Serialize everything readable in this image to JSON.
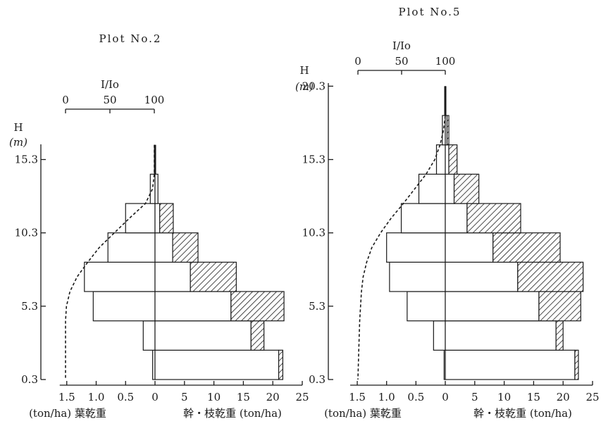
{
  "chart_data": [
    {
      "type": "bar",
      "title": "Plot No.2",
      "height_axis": {
        "label": "H",
        "unit": "(m)",
        "ticks": [
          "15.3",
          "10.3",
          "5.3",
          "0.3"
        ],
        "range": [
          0.3,
          16.3
        ]
      },
      "light_axis": {
        "label": "I/Io",
        "ticks": [
          "0",
          "50",
          "100"
        ],
        "range": [
          0,
          100
        ]
      },
      "leaf_axis": {
        "label": "(ton/ha) 葉乾重",
        "ticks": [
          "1.5",
          "1.0",
          "0.5",
          "0"
        ],
        "range": [
          0,
          1.5
        ]
      },
      "wood_axis": {
        "label": "幹・枝乾重 (ton/ha)",
        "ticks": [
          "0",
          "5",
          "10",
          "15",
          "20",
          "25"
        ],
        "range": [
          0,
          25
        ]
      },
      "layers": [
        {
          "h_bottom": 0.3,
          "h_top": 2.3,
          "leaf": 0.04,
          "stem": 21.0,
          "branch": 0.7
        },
        {
          "h_bottom": 2.3,
          "h_top": 4.3,
          "leaf": 0.2,
          "stem": 16.3,
          "branch": 2.2
        },
        {
          "h_bottom": 4.3,
          "h_top": 6.3,
          "leaf": 1.05,
          "stem": 12.9,
          "branch": 9.0
        },
        {
          "h_bottom": 6.3,
          "h_top": 8.3,
          "leaf": 1.2,
          "stem": 6.0,
          "branch": 7.8
        },
        {
          "h_bottom": 8.3,
          "h_top": 10.3,
          "leaf": 0.8,
          "stem": 3.0,
          "branch": 4.3
        },
        {
          "h_bottom": 10.3,
          "h_top": 12.3,
          "leaf": 0.5,
          "stem": 0.8,
          "branch": 2.3
        },
        {
          "h_bottom": 12.3,
          "h_top": 14.3,
          "leaf": 0.08,
          "stem": 0.5,
          "branch": 0.0
        }
      ],
      "light_profile": [
        {
          "h": 16.3,
          "i": 100
        },
        {
          "h": 14.3,
          "i": 100
        },
        {
          "h": 13.3,
          "i": 98
        },
        {
          "h": 12.3,
          "i": 90
        },
        {
          "h": 11.3,
          "i": 72
        },
        {
          "h": 10.3,
          "i": 55
        },
        {
          "h": 9.3,
          "i": 38
        },
        {
          "h": 8.3,
          "i": 25
        },
        {
          "h": 7.3,
          "i": 13
        },
        {
          "h": 6.3,
          "i": 5
        },
        {
          "h": 5.3,
          "i": 1
        },
        {
          "h": 4.3,
          "i": 0
        },
        {
          "h": 3.3,
          "i": 0
        },
        {
          "h": 0.3,
          "i": 0
        }
      ],
      "dead_top": {
        "h_from": 14.3,
        "h_to": 16.3
      }
    },
    {
      "type": "bar",
      "title": "Plot No.5",
      "height_axis": {
        "label": "H",
        "unit": "(m)",
        "ticks": [
          "20.3",
          "15.3",
          "10.3",
          "5.3",
          "0.3"
        ],
        "range": [
          0.3,
          20.3
        ]
      },
      "light_axis": {
        "label": "I/Io",
        "ticks": [
          "0",
          "50",
          "100"
        ],
        "range": [
          0,
          100
        ]
      },
      "leaf_axis": {
        "label": "(ton/ha) 葉乾重",
        "ticks": [
          "1.5",
          "1.0",
          "0.5",
          "0"
        ],
        "range": [
          0,
          1.5
        ]
      },
      "wood_axis": {
        "label": "幹・枝乾重 (ton/ha)",
        "ticks": [
          "0",
          "5",
          "10",
          "15",
          "20",
          "25"
        ],
        "range": [
          0,
          25
        ]
      },
      "layers": [
        {
          "h_bottom": 0.3,
          "h_top": 2.3,
          "leaf": 0.02,
          "stem": 22.0,
          "branch": 0.6
        },
        {
          "h_bottom": 2.3,
          "h_top": 4.3,
          "leaf": 0.2,
          "stem": 18.8,
          "branch": 1.2
        },
        {
          "h_bottom": 4.3,
          "h_top": 6.3,
          "leaf": 0.65,
          "stem": 15.9,
          "branch": 7.1
        },
        {
          "h_bottom": 6.3,
          "h_top": 8.3,
          "leaf": 0.95,
          "stem": 12.3,
          "branch": 11.1
        },
        {
          "h_bottom": 8.3,
          "h_top": 10.3,
          "leaf": 1.0,
          "stem": 8.1,
          "branch": 11.4
        },
        {
          "h_bottom": 10.3,
          "h_top": 12.3,
          "leaf": 0.75,
          "stem": 3.7,
          "branch": 9.1
        },
        {
          "h_bottom": 12.3,
          "h_top": 14.3,
          "leaf": 0.45,
          "stem": 1.5,
          "branch": 4.2
        },
        {
          "h_bottom": 14.3,
          "h_top": 16.3,
          "leaf": 0.15,
          "stem": 0.6,
          "branch": 1.4
        },
        {
          "h_bottom": 16.3,
          "h_top": 18.3,
          "leaf": 0.05,
          "stem": 0.3,
          "branch": 0.3
        }
      ],
      "light_profile": [
        {
          "h": 20.3,
          "i": 100
        },
        {
          "h": 18.3,
          "i": 100
        },
        {
          "h": 17.3,
          "i": 98
        },
        {
          "h": 16.3,
          "i": 94
        },
        {
          "h": 15.3,
          "i": 88
        },
        {
          "h": 14.3,
          "i": 78
        },
        {
          "h": 13.3,
          "i": 65
        },
        {
          "h": 12.3,
          "i": 52
        },
        {
          "h": 11.3,
          "i": 38
        },
        {
          "h": 10.3,
          "i": 26
        },
        {
          "h": 9.3,
          "i": 16
        },
        {
          "h": 8.3,
          "i": 10
        },
        {
          "h": 7.3,
          "i": 6
        },
        {
          "h": 6.3,
          "i": 4
        },
        {
          "h": 4.3,
          "i": 2
        },
        {
          "h": 2.3,
          "i": 1
        },
        {
          "h": 0.3,
          "i": 0
        }
      ],
      "dead_top": {
        "h_from": 18.3,
        "h_to": 20.3
      }
    }
  ]
}
